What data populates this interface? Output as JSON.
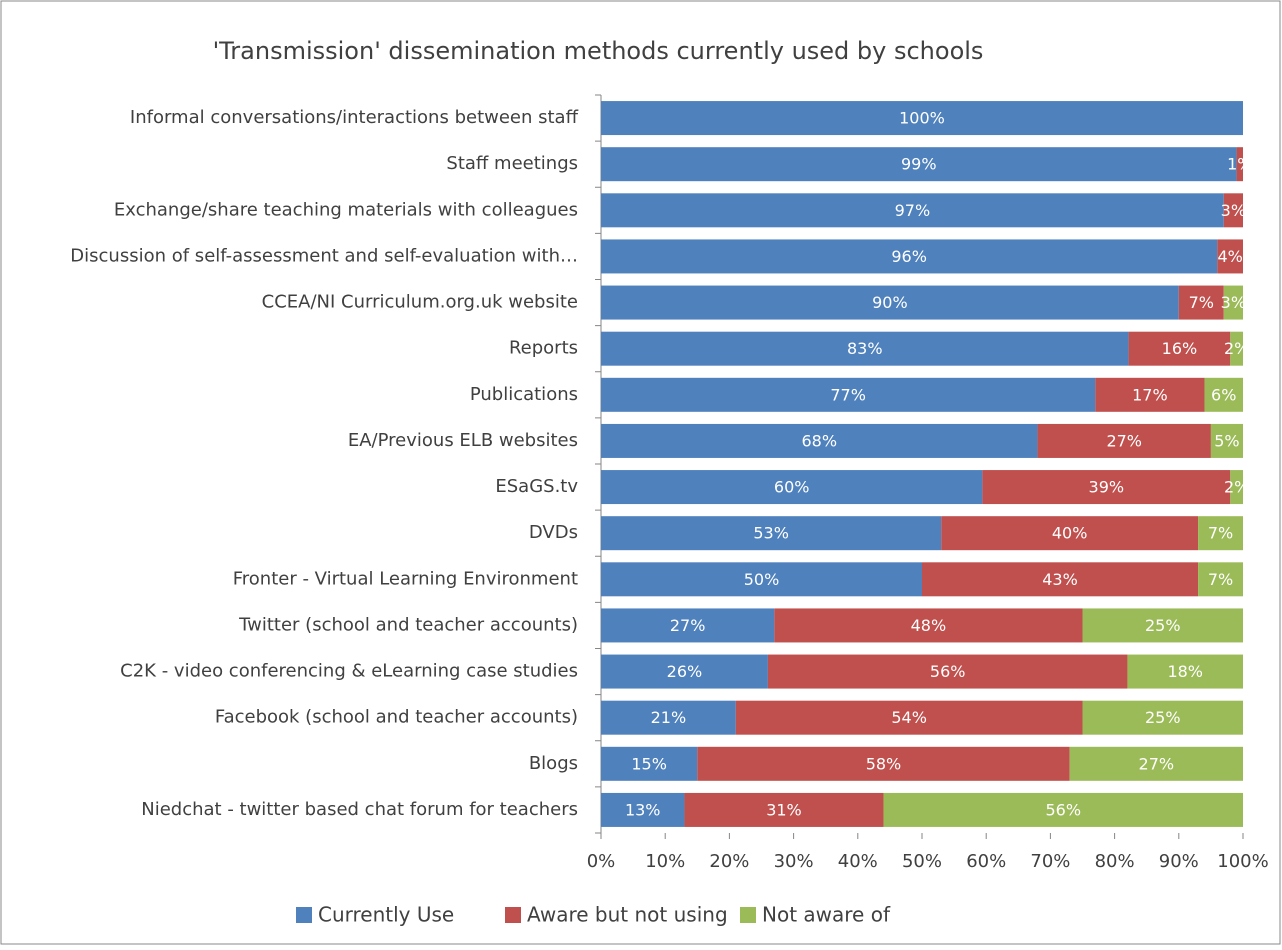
{
  "chart_data": {
    "type": "percent_stacked_barh",
    "title": "'Transmission' dissemination methods currently used by schools",
    "categories": [
      "Informal conversations/interactions between staff",
      "Staff meetings",
      "Exchange/share teaching materials with colleagues",
      "Discussion of self-assessment and self-evaluation with…",
      "CCEA/NI Curriculum.org.uk website",
      "Reports",
      "Publications",
      "EA/Previous ELB websites",
      "ESaGS.tv",
      "DVDs",
      "Fronter - Virtual Learning Environment",
      "Twitter (school and teacher accounts)",
      "C2K - video conferencing & eLearning case studies",
      "Facebook (school and teacher accounts)",
      "Blogs",
      "Niedchat - twitter based chat forum for teachers"
    ],
    "series": [
      {
        "name": "Currently Use",
        "color": "#4f81bd",
        "values": [
          100,
          99,
          97,
          96,
          90,
          83,
          77,
          68,
          60,
          53,
          50,
          27,
          26,
          21,
          15,
          13
        ],
        "value_labels": [
          "100%",
          "99%",
          "97%",
          "96%",
          "90%",
          "83%",
          "77%",
          "68%",
          "60%",
          "53%",
          "50%",
          "27%",
          "26%",
          "21%",
          "15%",
          "13%"
        ]
      },
      {
        "name": "Aware but not using",
        "color": "#c0504d",
        "values": [
          0,
          1,
          3,
          4,
          7,
          16,
          17,
          27,
          39,
          40,
          43,
          48,
          56,
          54,
          58,
          31
        ],
        "value_labels": [
          null,
          "1%",
          "3%",
          "4%",
          "7%",
          "16%",
          "17%",
          "27%",
          "39%",
          "40%",
          "43%",
          "48%",
          "56%",
          "54%",
          "58%",
          "31%"
        ]
      },
      {
        "name": "Not aware of",
        "color": "#9bbb59",
        "values": [
          0,
          0,
          0,
          0,
          3,
          2,
          6,
          5,
          2,
          7,
          7,
          25,
          18,
          25,
          27,
          56
        ],
        "value_labels": [
          null,
          null,
          null,
          null,
          "3%",
          "2%",
          "6%",
          "5%",
          "2%",
          "7%",
          "7%",
          "25%",
          "18%",
          "25%",
          "27%",
          "56%"
        ]
      }
    ],
    "xlim": [
      0,
      100
    ],
    "xticks": [
      {
        "value": 0,
        "label": "0%"
      },
      {
        "value": 10,
        "label": "10%"
      },
      {
        "value": 20,
        "label": "20%"
      },
      {
        "value": 30,
        "label": "30%"
      },
      {
        "value": 40,
        "label": "40%"
      },
      {
        "value": 50,
        "label": "50%"
      },
      {
        "value": 60,
        "label": "60%"
      },
      {
        "value": 70,
        "label": "70%"
      },
      {
        "value": 80,
        "label": "80%"
      },
      {
        "value": 90,
        "label": "90%"
      },
      {
        "value": 100,
        "label": "100%"
      }
    ],
    "legend": "bottom"
  }
}
